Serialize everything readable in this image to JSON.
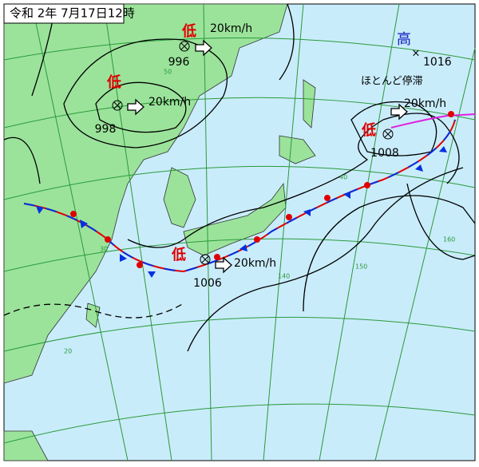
{
  "title": "令和 2年 7月17日12時",
  "lows": [
    {
      "symbol": "低",
      "pressure": 996,
      "motion": "20km/h"
    },
    {
      "symbol": "低",
      "pressure": 998,
      "motion": "20km/h"
    },
    {
      "symbol": "低",
      "pressure": 1008,
      "motion": "20km/h"
    },
    {
      "symbol": "低",
      "pressure": 1006,
      "motion": "20km/h"
    }
  ],
  "high": {
    "symbol": "高",
    "pressure": 1016,
    "motion": "ほとんど停滞"
  },
  "grid_labels": [
    "50",
    "40",
    "30",
    "20",
    "140",
    "150",
    "160"
  ]
}
